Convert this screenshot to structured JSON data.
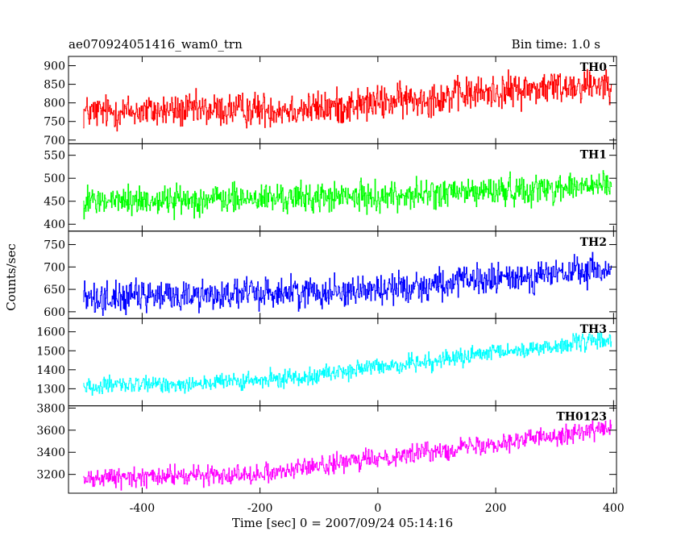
{
  "chart_data": {
    "type": "line",
    "title_left": "ae070924051416_wam0_trn",
    "title_right": "Bin time: 1.0 s",
    "xlabel": "Time [sec] 0 = 2007/09/24 05:14:16",
    "ylabel": "Counts/sec",
    "xlim": [
      -525,
      405
    ],
    "xticks": [
      -400,
      -200,
      0,
      200,
      400
    ],
    "x_sample": {
      "start": -500,
      "end": 396,
      "step": 1
    },
    "panels": [
      {
        "name": "TH0",
        "color": "#ff0000",
        "ylim": [
          690,
          925
        ],
        "yticks": [
          700,
          750,
          800,
          850,
          900
        ],
        "trend": [
          [
            -500,
            775
          ],
          [
            -100,
            785
          ],
          [
            200,
            830
          ],
          [
            396,
            855
          ]
        ],
        "noise_amp": 40
      },
      {
        "name": "TH1",
        "color": "#00ff00",
        "ylim": [
          385,
          575
        ],
        "yticks": [
          400,
          450,
          500,
          550
        ],
        "trend": [
          [
            -500,
            450
          ],
          [
            0,
            460
          ],
          [
            396,
            485
          ]
        ],
        "noise_amp": 28
      },
      {
        "name": "TH2",
        "color": "#0000ff",
        "ylim": [
          585,
          780
        ],
        "yticks": [
          600,
          650,
          700,
          750
        ],
        "trend": [
          [
            -500,
            630
          ],
          [
            0,
            650
          ],
          [
            396,
            695
          ]
        ],
        "noise_amp": 30
      },
      {
        "name": "TH3",
        "color": "#00ffff",
        "ylim": [
          1210,
          1670
        ],
        "yticks": [
          1300,
          1400,
          1500,
          1600
        ],
        "trend": [
          [
            -500,
            1310
          ],
          [
            -200,
            1340
          ],
          [
            396,
            1560
          ]
        ],
        "noise_amp": 40
      },
      {
        "name": "TH0123",
        "color": "#ff00ff",
        "ylim": [
          3030,
          3820
        ],
        "yticks": [
          3200,
          3400,
          3600,
          3800
        ],
        "trend": [
          [
            -500,
            3160
          ],
          [
            -200,
            3210
          ],
          [
            396,
            3620
          ]
        ],
        "noise_amp": 75
      }
    ]
  }
}
